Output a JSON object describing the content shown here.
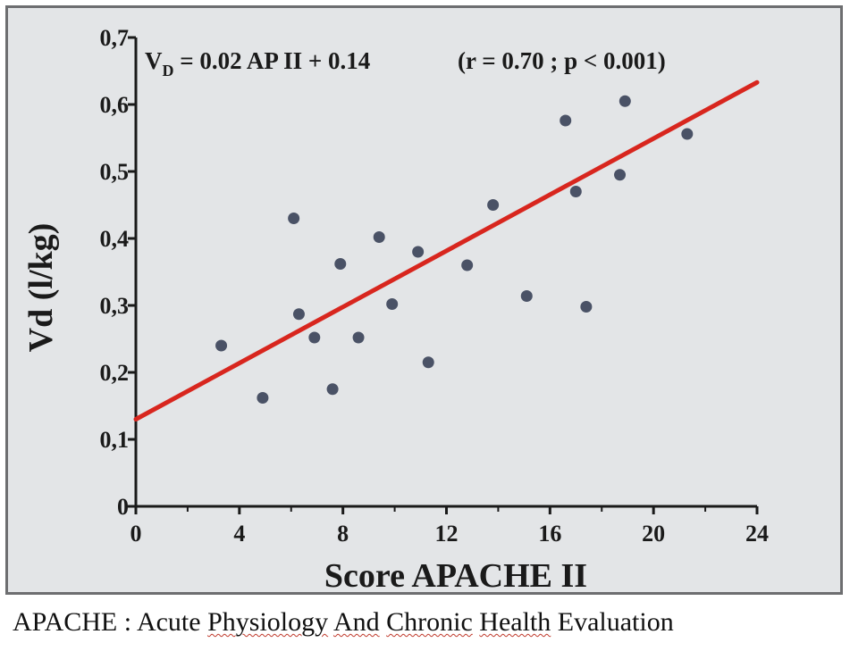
{
  "chart_data": {
    "type": "scatter",
    "xlabel": "Score APACHE II",
    "ylabel": "Vd (l/kg)",
    "xlim": [
      0,
      24
    ],
    "ylim": [
      0,
      0.7
    ],
    "x_ticks": [
      0,
      4,
      8,
      12,
      16,
      20,
      24
    ],
    "x_tick_labels": [
      "0",
      "4",
      "8",
      "12",
      "16",
      "20",
      "24"
    ],
    "y_ticks": [
      0,
      0.1,
      0.2,
      0.3,
      0.4,
      0.5,
      0.6,
      0.7
    ],
    "y_tick_labels": [
      "0",
      "0,1",
      "0,2",
      "0,3",
      "0,4",
      "0,5",
      "0,6",
      "0,7"
    ],
    "grid": false,
    "equation": {
      "lhs_main": "V",
      "lhs_sub": "D",
      "rhs": " = 0.02 AP II + 0.14",
      "stats": "(r = 0.70 ; p < 0.001)"
    },
    "points": [
      {
        "x": 3.3,
        "y": 0.24
      },
      {
        "x": 4.9,
        "y": 0.162
      },
      {
        "x": 6.1,
        "y": 0.43
      },
      {
        "x": 6.3,
        "y": 0.287
      },
      {
        "x": 6.9,
        "y": 0.252
      },
      {
        "x": 7.6,
        "y": 0.175
      },
      {
        "x": 7.9,
        "y": 0.362
      },
      {
        "x": 8.6,
        "y": 0.252
      },
      {
        "x": 9.4,
        "y": 0.402
      },
      {
        "x": 9.9,
        "y": 0.302
      },
      {
        "x": 10.9,
        "y": 0.38
      },
      {
        "x": 11.3,
        "y": 0.215
      },
      {
        "x": 12.8,
        "y": 0.36
      },
      {
        "x": 13.8,
        "y": 0.45
      },
      {
        "x": 15.1,
        "y": 0.314
      },
      {
        "x": 16.6,
        "y": 0.576
      },
      {
        "x": 17.0,
        "y": 0.47
      },
      {
        "x": 17.4,
        "y": 0.298
      },
      {
        "x": 18.7,
        "y": 0.495
      },
      {
        "x": 18.9,
        "y": 0.605
      },
      {
        "x": 21.3,
        "y": 0.556
      }
    ],
    "regression_line": {
      "x": [
        0,
        24
      ],
      "y": [
        0.13,
        0.633
      ]
    },
    "colors": {
      "background": "#e3e5e7",
      "points": "#4a5266",
      "line": "#d8261e",
      "axis": "#1a1a1a"
    }
  },
  "caption": {
    "prefix": "APACHE : Acute ",
    "w1": "Physiology",
    "w2": "And",
    "w3": "Chronic",
    "w4": "Health",
    "suffix": " Evaluation"
  }
}
